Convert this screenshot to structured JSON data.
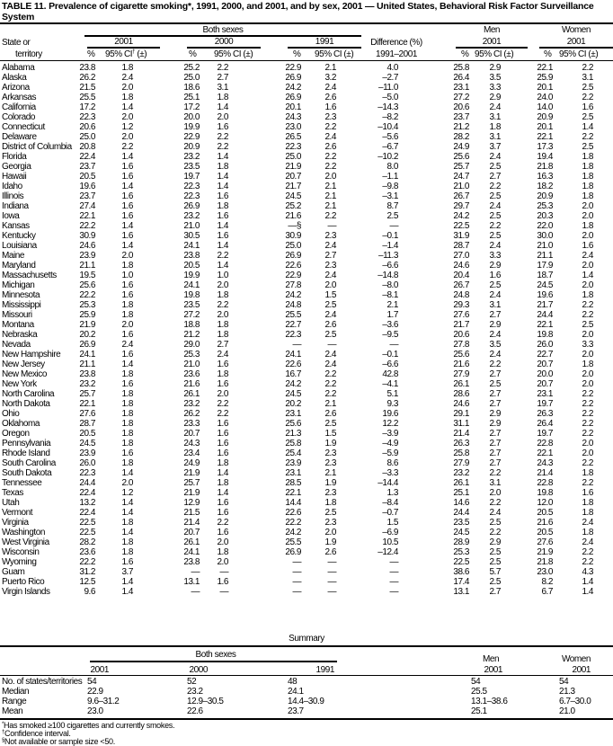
{
  "title": "TABLE 11. Prevalence of cigarette smoking*, 1991, 2000, and 2001, and by sex, 2001 — United States, Behavioral Risk Factor Surveillance System",
  "header": {
    "state_line1": "State or",
    "state_line2": "territory",
    "both_sexes": "Both sexes",
    "men": "Men",
    "women": "Women",
    "year_2001": "2001",
    "year_2000": "2000",
    "year_1991": "1991",
    "difference": "Difference (%)",
    "difference_range": "1991–2001",
    "pct": "%",
    "ci_first": "95% CI",
    "ci_first_mark": "†",
    "ci_pm": "(±)",
    "ci": "95% CI (±)"
  },
  "rows": [
    [
      "Alabama",
      "23.8",
      "1.8",
      "25.2",
      "2.2",
      "22.9",
      "2.1",
      "4.0",
      "25.8",
      "2.9",
      "22.1",
      "2.2"
    ],
    [
      "Alaska",
      "26.2",
      "2.4",
      "25.0",
      "2.7",
      "26.9",
      "3.2",
      "–2.7",
      "26.4",
      "3.5",
      "25.9",
      "3.1"
    ],
    [
      "Arizona",
      "21.5",
      "2.0",
      "18.6",
      "3.1",
      "24.2",
      "2.4",
      "–11.0",
      "23.1",
      "3.3",
      "20.1",
      "2.5"
    ],
    [
      "Arkansas",
      "25.5",
      "1.8",
      "25.1",
      "1.8",
      "26.9",
      "2.6",
      "–5.0",
      "27.2",
      "2.9",
      "24.0",
      "2.2"
    ],
    [
      "California",
      "17.2",
      "1.4",
      "17.2",
      "1.4",
      "20.1",
      "1.6",
      "–14.3",
      "20.6",
      "2.4",
      "14.0",
      "1.6"
    ],
    [
      "Colorado",
      "22.3",
      "2.0",
      "20.0",
      "2.0",
      "24.3",
      "2.3",
      "–8.2",
      "23.7",
      "3.1",
      "20.9",
      "2.5"
    ],
    [
      "Connecticut",
      "20.6",
      "1.2",
      "19.9",
      "1.6",
      "23.0",
      "2.2",
      "–10.4",
      "21.2",
      "1.8",
      "20.1",
      "1.4"
    ],
    [
      "Delaware",
      "25.0",
      "2.0",
      "22.9",
      "2.2",
      "26.5",
      "2.4",
      "–5.6",
      "28.2",
      "3.1",
      "22.1",
      "2.2"
    ],
    [
      "District of Columbia",
      "20.8",
      "2.2",
      "20.9",
      "2.2",
      "22.3",
      "2.6",
      "–6.7",
      "24.9",
      "3.7",
      "17.3",
      "2.5"
    ],
    [
      "Florida",
      "22.4",
      "1.4",
      "23.2",
      "1.4",
      "25.0",
      "2.2",
      "–10.2",
      "25.6",
      "2.4",
      "19.4",
      "1.8"
    ],
    [
      "Georgia",
      "23.7",
      "1.6",
      "23.5",
      "1.8",
      "21.9",
      "2.2",
      "8.0",
      "25.7",
      "2.5",
      "21.8",
      "1.8"
    ],
    [
      "Hawaii",
      "20.5",
      "1.6",
      "19.7",
      "1.4",
      "20.7",
      "2.0",
      "–1.1",
      "24.7",
      "2.7",
      "16.3",
      "1.8"
    ],
    [
      "Idaho",
      "19.6",
      "1.4",
      "22.3",
      "1.4",
      "21.7",
      "2.1",
      "–9.8",
      "21.0",
      "2.2",
      "18.2",
      "1.8"
    ],
    [
      "Illinois",
      "23.7",
      "1.6",
      "22.3",
      "1.6",
      "24.5",
      "2.1",
      "–3.1",
      "26.7",
      "2.5",
      "20.9",
      "1.8"
    ],
    [
      "Indiana",
      "27.4",
      "1.6",
      "26.9",
      "1.8",
      "25.2",
      "2.1",
      "8.7",
      "29.7",
      "2.4",
      "25.3",
      "2.0"
    ],
    [
      "Iowa",
      "22.1",
      "1.6",
      "23.2",
      "1.6",
      "21.6",
      "2.2",
      "2.5",
      "24.2",
      "2.5",
      "20.3",
      "2.0"
    ],
    [
      "Kansas",
      "22.2",
      "1.4",
      "21.0",
      "1.4",
      "—§",
      "—",
      "—",
      "22.5",
      "2.2",
      "22.0",
      "1.8"
    ],
    [
      "Kentucky",
      "30.9",
      "1.6",
      "30.5",
      "1.6",
      "30.9",
      "2.3",
      "–0.1",
      "31.9",
      "2.5",
      "30.0",
      "2.0"
    ],
    [
      "Louisiana",
      "24.6",
      "1.4",
      "24.1",
      "1.4",
      "25.0",
      "2.4",
      "–1.4",
      "28.7",
      "2.4",
      "21.0",
      "1.6"
    ],
    [
      "Maine",
      "23.9",
      "2.0",
      "23.8",
      "2.2",
      "26.9",
      "2.7",
      "–11.3",
      "27.0",
      "3.3",
      "21.1",
      "2.4"
    ],
    [
      "Maryland",
      "21.1",
      "1.8",
      "20.5",
      "1.4",
      "22.6",
      "2.3",
      "–6.6",
      "24.6",
      "2.9",
      "17.9",
      "2.0"
    ],
    [
      "Massachusetts",
      "19.5",
      "1.0",
      "19.9",
      "1.0",
      "22.9",
      "2.4",
      "–14.8",
      "20.4",
      "1.6",
      "18.7",
      "1.4"
    ],
    [
      "Michigan",
      "25.6",
      "1.6",
      "24.1",
      "2.0",
      "27.8",
      "2.0",
      "–8.0",
      "26.7",
      "2.5",
      "24.5",
      "2.0"
    ],
    [
      "Minnesota",
      "22.2",
      "1.6",
      "19.8",
      "1.8",
      "24.2",
      "1.5",
      "–8.1",
      "24.8",
      "2.4",
      "19.6",
      "1.8"
    ],
    [
      "Mississippi",
      "25.3",
      "1.8",
      "23.5",
      "2.2",
      "24.8",
      "2.5",
      "2.1",
      "29.3",
      "3.1",
      "21.7",
      "2.2"
    ],
    [
      "Missouri",
      "25.9",
      "1.8",
      "27.2",
      "2.0",
      "25.5",
      "2.4",
      "1.7",
      "27.6",
      "2.7",
      "24.4",
      "2.2"
    ],
    [
      "Montana",
      "21.9",
      "2.0",
      "18.8",
      "1.8",
      "22.7",
      "2.6",
      "–3.6",
      "21.7",
      "2.9",
      "22.1",
      "2.5"
    ],
    [
      "Nebraska",
      "20.2",
      "1.6",
      "21.2",
      "1.8",
      "22.3",
      "2.5",
      "–9.5",
      "20.6",
      "2.4",
      "19.8",
      "2.0"
    ],
    [
      "Nevada",
      "26.9",
      "2.4",
      "29.0",
      "2.7",
      "—",
      "—",
      "—",
      "27.8",
      "3.5",
      "26.0",
      "3.3"
    ],
    [
      "New Hampshire",
      "24.1",
      "1.6",
      "25.3",
      "2.4",
      "24.1",
      "2.4",
      "–0.1",
      "25.6",
      "2.4",
      "22.7",
      "2.0"
    ],
    [
      "New Jersey",
      "21.1",
      "1.4",
      "21.0",
      "1.6",
      "22.6",
      "2.4",
      "–6.6",
      "21.6",
      "2.2",
      "20.7",
      "1.8"
    ],
    [
      "New Mexico",
      "23.8",
      "1.8",
      "23.6",
      "1.8",
      "16.7",
      "2.2",
      "42.8",
      "27.9",
      "2.7",
      "20.0",
      "2.0"
    ],
    [
      "New York",
      "23.2",
      "1.6",
      "21.6",
      "1.6",
      "24.2",
      "2.2",
      "–4.1",
      "26.1",
      "2.5",
      "20.7",
      "2.0"
    ],
    [
      "North Carolina",
      "25.7",
      "1.8",
      "26.1",
      "2.0",
      "24.5",
      "2.2",
      "5.1",
      "28.6",
      "2.7",
      "23.1",
      "2.2"
    ],
    [
      "North Dakota",
      "22.1",
      "1.8",
      "23.2",
      "2.2",
      "20.2",
      "2.1",
      "9.3",
      "24.6",
      "2.7",
      "19.7",
      "2.2"
    ],
    [
      "Ohio",
      "27.6",
      "1.8",
      "26.2",
      "2.2",
      "23.1",
      "2.6",
      "19.6",
      "29.1",
      "2.9",
      "26.3",
      "2.2"
    ],
    [
      "Oklahoma",
      "28.7",
      "1.8",
      "23.3",
      "1.6",
      "25.6",
      "2.5",
      "12.2",
      "31.1",
      "2.9",
      "26.4",
      "2.2"
    ],
    [
      "Oregon",
      "20.5",
      "1.8",
      "20.7",
      "1.6",
      "21.3",
      "1.5",
      "–3.9",
      "21.4",
      "2.7",
      "19.7",
      "2.2"
    ],
    [
      "Pennsylvania",
      "24.5",
      "1.8",
      "24.3",
      "1.6",
      "25.8",
      "1.9",
      "–4.9",
      "26.3",
      "2.7",
      "22.8",
      "2.0"
    ],
    [
      "Rhode Island",
      "23.9",
      "1.6",
      "23.4",
      "1.6",
      "25.4",
      "2.3",
      "–5.9",
      "25.8",
      "2.7",
      "22.1",
      "2.0"
    ],
    [
      "South Carolina",
      "26.0",
      "1.8",
      "24.9",
      "1.8",
      "23.9",
      "2.3",
      "8.6",
      "27.9",
      "2.7",
      "24.3",
      "2.2"
    ],
    [
      "South Dakota",
      "22.3",
      "1.4",
      "21.9",
      "1.4",
      "23.1",
      "2.1",
      "–3.3",
      "23.2",
      "2.2",
      "21.4",
      "1.8"
    ],
    [
      "Tennessee",
      "24.4",
      "2.0",
      "25.7",
      "1.8",
      "28.5",
      "1.9",
      "–14.4",
      "26.1",
      "3.1",
      "22.8",
      "2.2"
    ],
    [
      "Texas",
      "22.4",
      "1.2",
      "21.9",
      "1.4",
      "22.1",
      "2.3",
      "1.3",
      "25.1",
      "2.0",
      "19.8",
      "1.6"
    ],
    [
      "Utah",
      "13.2",
      "1.4",
      "12.9",
      "1.6",
      "14.4",
      "1.8",
      "–8.4",
      "14.6",
      "2.2",
      "12.0",
      "1.8"
    ],
    [
      "Vermont",
      "22.4",
      "1.4",
      "21.5",
      "1.6",
      "22.6",
      "2.5",
      "–0.7",
      "24.4",
      "2.4",
      "20.5",
      "1.8"
    ],
    [
      "Virginia",
      "22.5",
      "1.8",
      "21.4",
      "2.2",
      "22.2",
      "2.3",
      "1.5",
      "23.5",
      "2.5",
      "21.6",
      "2.4"
    ],
    [
      "Washington",
      "22.5",
      "1.4",
      "20.7",
      "1.6",
      "24.2",
      "2.0",
      "–6.9",
      "24.5",
      "2.2",
      "20.5",
      "1.8"
    ],
    [
      "West Virginia",
      "28.2",
      "1.8",
      "26.1",
      "2.0",
      "25.5",
      "1.9",
      "10.5",
      "28.9",
      "2.9",
      "27.6",
      "2.4"
    ],
    [
      "Wisconsin",
      "23.6",
      "1.8",
      "24.1",
      "1.8",
      "26.9",
      "2.6",
      "–12.4",
      "25.3",
      "2.5",
      "21.9",
      "2.2"
    ],
    [
      "Wyoming",
      "22.2",
      "1.6",
      "23.8",
      "2.0",
      "—",
      "—",
      "—",
      "22.5",
      "2.5",
      "21.8",
      "2.2"
    ],
    [
      "Guam",
      "31.2",
      "3.7",
      "—",
      "—",
      "—",
      "—",
      "—",
      "38.6",
      "5.7",
      "23.0",
      "4.3"
    ],
    [
      "Puerto Rico",
      "12.5",
      "1.4",
      "13.1",
      "1.6",
      "—",
      "—",
      "—",
      "17.4",
      "2.5",
      "8.2",
      "1.4"
    ],
    [
      "Virgin Islands",
      "9.6",
      "1.4",
      "—",
      "—",
      "—",
      "—",
      "—",
      "13.1",
      "2.7",
      "6.7",
      "1.4"
    ]
  ],
  "summary": {
    "title": "Summary",
    "both_sexes": "Both sexes",
    "men": "Men",
    "women": "Women",
    "years": [
      "2001",
      "2000",
      "1991",
      "2001",
      "2001"
    ],
    "rows": [
      [
        "No. of states/territories",
        "54",
        "52",
        "48",
        "54",
        "54"
      ],
      [
        "Median",
        "22.9",
        "23.2",
        "24.1",
        "25.5",
        "21.3"
      ],
      [
        "Range",
        "9.6–31.2",
        "12.9–30.5",
        "14.4–30.9",
        "13.1–38.6",
        "6.7–30.0"
      ],
      [
        "Mean",
        "23.0",
        "22.6",
        "23.7",
        "25.1",
        "21.0"
      ]
    ]
  },
  "footnotes": [
    {
      "mark": "*",
      "pre": "Has smoked ",
      "ge": "≥",
      "post": "100 cigarettes and currently smokes."
    },
    {
      "mark": "†",
      "text": "Confidence interval."
    },
    {
      "mark": "§",
      "text": "Not available or sample size <50."
    }
  ]
}
